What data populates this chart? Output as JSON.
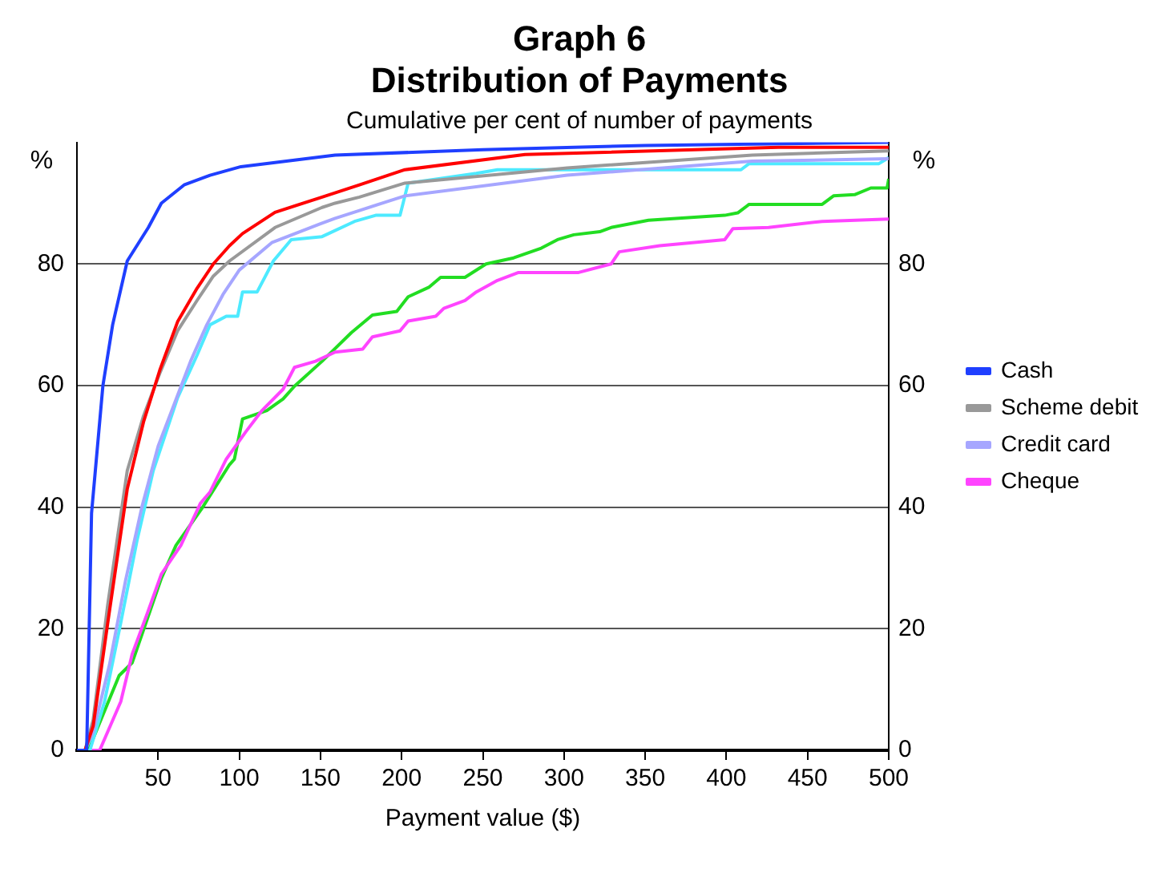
{
  "chart_data": {
    "type": "line",
    "title": "Graph 6\nDistribution of Payments",
    "subtitle": "Cumulative per cent of number of payments",
    "xlabel": "Payment value ($)",
    "ylabel": "%",
    "y2label": "%",
    "xlim": [
      0,
      500
    ],
    "xticks": [
      50,
      100,
      150,
      200,
      250,
      300,
      350,
      400,
      450,
      500
    ],
    "ylim": [
      0,
      100
    ],
    "yticks": [
      0,
      20,
      40,
      60,
      80
    ],
    "y2lim": [
      0,
      100
    ],
    "y2ticks": [
      0,
      20,
      40,
      60,
      80
    ],
    "grid": "y",
    "legend": "right",
    "marker": "none",
    "line_style": "solid",
    "series": [
      {
        "name": "Cash",
        "color": "#1f3fff",
        "x": [
          0,
          6,
          9,
          16,
          22,
          31,
          44,
          52,
          66,
          82,
          101,
          159,
          250,
          350,
          500
        ],
        "values": [
          0,
          0,
          39,
          60,
          70,
          80.5,
          86,
          90,
          93,
          94.6,
          96,
          97.9,
          98.8,
          99.5,
          100
        ]
      },
      {
        "color": "#ff0000",
        "x": [
          0,
          5,
          10,
          19,
          31,
          41,
          51,
          62,
          74,
          84,
          94,
          102,
          122,
          151,
          174,
          202,
          276,
          432,
          500
        ],
        "values": [
          0,
          0,
          4,
          21,
          43,
          54,
          62.5,
          70.5,
          76,
          80,
          83,
          85,
          88.5,
          91,
          93,
          95.5,
          98,
          99.2,
          99.2
        ]
      },
      {
        "name": "Scheme debit",
        "color": "#999999",
        "x": [
          0,
          5,
          10,
          19,
          31,
          41,
          51,
          62,
          74,
          84,
          94,
          122,
          151,
          159,
          174,
          202,
          302,
          416,
          500
        ],
        "values": [
          0,
          0,
          5,
          24,
          46,
          55,
          62,
          69,
          74,
          78,
          80.5,
          86,
          89.3,
          90,
          91,
          93.3,
          95.8,
          97.9,
          98.6
        ]
      },
      {
        "name": "Credit card",
        "color": "#a6a6ff",
        "x": [
          0,
          5,
          10,
          20,
          30,
          40,
          50,
          60,
          70,
          80,
          90,
          100,
          120,
          150,
          159,
          174,
          202,
          302,
          416,
          500
        ],
        "values": [
          0,
          0,
          3,
          14,
          28,
          40,
          50,
          57,
          64,
          70,
          75,
          79,
          83.5,
          86.6,
          87.5,
          88.8,
          91.2,
          94.6,
          96.9,
          97.3
        ]
      },
      {
        "color": "#4deaff",
        "x": [
          0,
          8,
          17,
          27,
          37,
          47,
          62,
          74,
          82,
          92,
          99,
          102,
          111,
          121,
          132,
          151,
          171,
          184,
          199,
          204,
          246,
          259,
          409,
          414,
          494,
          500
        ],
        "values": [
          0,
          0,
          8,
          21,
          34.5,
          46,
          58,
          65,
          70,
          71.4,
          71.4,
          75.4,
          75.4,
          80.5,
          84,
          84.5,
          87,
          88,
          88,
          93.3,
          94.9,
          95.5,
          95.5,
          96.5,
          96.5,
          97.5
        ]
      },
      {
        "name": "Cheque",
        "color": "#ff44ff",
        "x": [
          0,
          14,
          27,
          34,
          44,
          52,
          64,
          76,
          82,
          92,
          104,
          114,
          127,
          134,
          147,
          159,
          176,
          182,
          199,
          204,
          221,
          226,
          239,
          246,
          259,
          272,
          309,
          329,
          334,
          359,
          399,
          404,
          426,
          459,
          500
        ],
        "values": [
          0,
          0,
          8,
          15.8,
          23,
          29,
          33.7,
          40.6,
          42.5,
          47.9,
          52.4,
          55.9,
          59.4,
          63,
          64,
          65.5,
          66,
          68,
          69,
          70.6,
          71.4,
          72.7,
          74,
          75.4,
          77.3,
          78.6,
          78.6,
          80,
          82,
          83,
          84,
          85.8,
          86,
          87,
          87.4
        ]
      },
      {
        "color": "#22dd22",
        "x": [
          0,
          7,
          26,
          34,
          52,
          61,
          77,
          94,
          97,
          102,
          117,
          127,
          134,
          151,
          169,
          182,
          197,
          204,
          217,
          224,
          239,
          252,
          269,
          286,
          296,
          306,
          322,
          329,
          352,
          399,
          407,
          414,
          459,
          466,
          479,
          489,
          499,
          500
        ],
        "values": [
          0,
          0,
          12.3,
          14.4,
          28.3,
          33.7,
          39.8,
          47,
          47.9,
          54.5,
          55.9,
          57.8,
          59.9,
          64,
          68.7,
          71.6,
          72.2,
          74.6,
          76.2,
          77.8,
          77.8,
          80,
          81,
          82.6,
          84,
          84.8,
          85.3,
          86,
          87.2,
          88,
          88.4,
          89.8,
          89.8,
          91.2,
          91.4,
          92.5,
          92.5,
          94
        ]
      }
    ]
  }
}
